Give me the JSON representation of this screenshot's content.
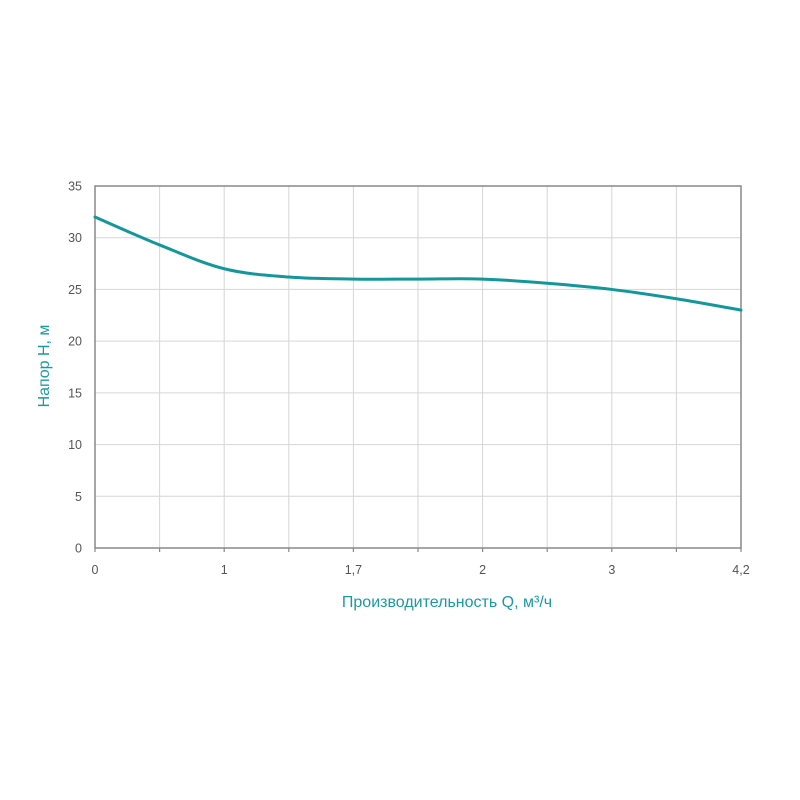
{
  "colors": {
    "curve": "#14979b",
    "axis_title": "#1a9aa2",
    "grid": "#d6d6d6",
    "frame": "#888888",
    "tick_text": "#555555"
  },
  "chart_data": {
    "type": "line",
    "title": "",
    "xlabel": "Производительность Q, м³/ч",
    "ylabel": "Напор H, м",
    "x_tick_labels": [
      "0",
      "1",
      "1,7",
      "2",
      "3",
      "4,2"
    ],
    "x_tick_label_slots": [
      0,
      2,
      4,
      6,
      8,
      10
    ],
    "x_slot_count": 10,
    "y_ticks": [
      0,
      5,
      10,
      15,
      20,
      25,
      30,
      35
    ],
    "ylim": [
      0,
      35
    ],
    "grid": true,
    "series": [
      {
        "slots": [
          0,
          1,
          2,
          3,
          4,
          5,
          6,
          7,
          8,
          9,
          10
        ],
        "values": [
          32,
          29.3,
          27,
          26.2,
          26,
          26,
          26,
          25.6,
          25,
          24.1,
          23
        ]
      }
    ]
  }
}
